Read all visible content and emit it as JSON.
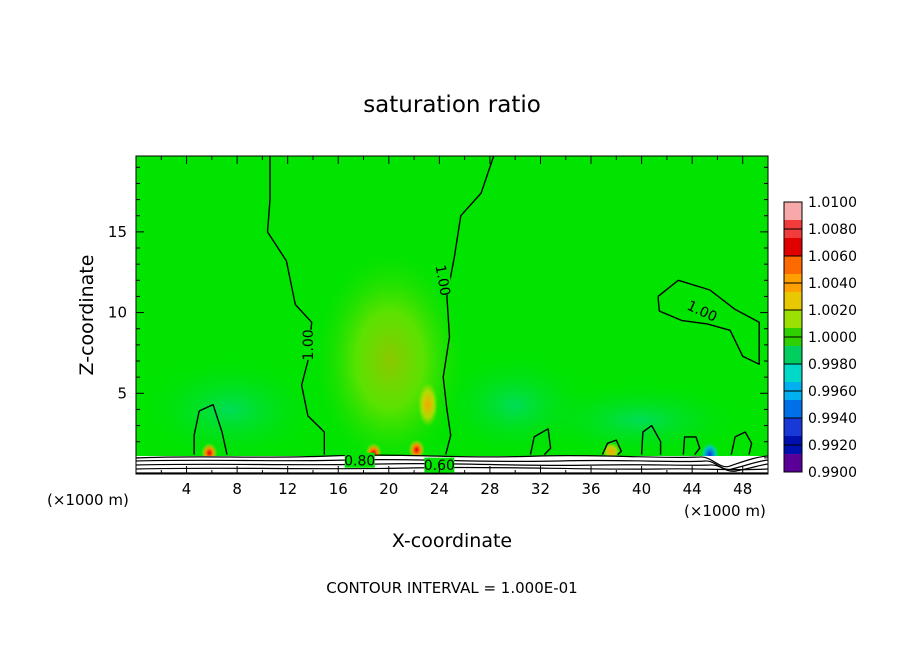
{
  "chart_data": {
    "type": "heatmap",
    "title": "saturation ratio",
    "xlabel": "X-coordinate",
    "ylabel": "Z-coordinate",
    "x_unit_label": "(×1000 m)",
    "x_ticks": [
      4,
      8,
      12,
      16,
      20,
      24,
      28,
      32,
      36,
      40,
      44,
      48
    ],
    "y_ticks": [
      5,
      10,
      15
    ],
    "xlim": [
      0,
      50
    ],
    "ylim": [
      0,
      19.7
    ],
    "footer": "CONTOUR INTERVAL = 1.000E-01",
    "colorbar": {
      "labels": [
        "1.0100",
        "1.0080",
        "1.0060",
        "1.0040",
        "1.0020",
        "1.0000",
        "0.9980",
        "0.9960",
        "0.9940",
        "0.9920",
        "0.9900"
      ],
      "colors": [
        "#f7a8a8",
        "#f03c3c",
        "#e00000",
        "#ff6a00",
        "#ffa000",
        "#e8c800",
        "#9be000",
        "#2fd000",
        "#00cf60",
        "#00d8c8",
        "#00b0f0",
        "#0070e8",
        "#1838d8",
        "#0010b0",
        "#5a0098"
      ]
    },
    "contour_labels": [
      {
        "text": "1.00",
        "x": 13.6,
        "z": 8.0
      },
      {
        "text": "1.00",
        "x": 24.3,
        "z": 12.0
      },
      {
        "text": "1.00",
        "x": 44.8,
        "z": 10.1
      },
      {
        "text": "0.80",
        "x": 17.7,
        "z": 0.85
      },
      {
        "text": "0.60",
        "x": 24.0,
        "z": 0.55
      }
    ],
    "contours_1_00": [
      {
        "name": "left",
        "points": [
          [
            10.6,
            19.7
          ],
          [
            10.6,
            17.0
          ],
          [
            10.4,
            15.0
          ],
          [
            11.9,
            13.2
          ],
          [
            12.6,
            10.5
          ],
          [
            13.9,
            9.4
          ],
          [
            13.6,
            7.0
          ],
          [
            13.1,
            5.5
          ],
          [
            13.6,
            3.6
          ],
          [
            14.9,
            2.6
          ],
          [
            14.9,
            1.2
          ]
        ]
      },
      {
        "name": "right",
        "points": [
          [
            28.3,
            19.7
          ],
          [
            27.3,
            17.4
          ],
          [
            25.7,
            16.0
          ],
          [
            25.2,
            13.5
          ],
          [
            24.6,
            11.0
          ],
          [
            24.8,
            8.5
          ],
          [
            24.3,
            6.0
          ],
          [
            24.6,
            4.0
          ],
          [
            24.9,
            2.4
          ],
          [
            24.5,
            1.2
          ]
        ]
      },
      {
        "name": "closed-upper-right",
        "points": [
          [
            41.3,
            11.0
          ],
          [
            42.9,
            12.0
          ],
          [
            45.4,
            11.4
          ],
          [
            47.4,
            10.2
          ],
          [
            49.3,
            9.4
          ],
          [
            49.3,
            6.8
          ],
          [
            48.0,
            7.3
          ],
          [
            47.0,
            8.9
          ],
          [
            45.2,
            9.3
          ],
          [
            43.2,
            9.5
          ],
          [
            41.4,
            10.1
          ],
          [
            41.3,
            11.0
          ]
        ]
      },
      {
        "name": "bump-6",
        "points": [
          [
            4.6,
            1.2
          ],
          [
            4.6,
            2.4
          ],
          [
            5.0,
            3.9
          ],
          [
            6.1,
            4.3
          ],
          [
            6.8,
            2.6
          ],
          [
            7.2,
            1.2
          ]
        ]
      },
      {
        "name": "bump-32",
        "points": [
          [
            31.2,
            1.2
          ],
          [
            31.5,
            2.3
          ],
          [
            32.6,
            2.8
          ],
          [
            32.8,
            1.6
          ],
          [
            32.3,
            1.2
          ]
        ]
      },
      {
        "name": "bump-37",
        "points": [
          [
            36.9,
            1.2
          ],
          [
            37.3,
            1.9
          ],
          [
            38.0,
            2.1
          ],
          [
            38.4,
            1.4
          ],
          [
            38.1,
            1.2
          ]
        ]
      },
      {
        "name": "bump-40",
        "points": [
          [
            40.0,
            1.2
          ],
          [
            40.1,
            2.6
          ],
          [
            40.8,
            3.0
          ],
          [
            41.5,
            2.0
          ],
          [
            41.5,
            1.2
          ]
        ]
      },
      {
        "name": "bump-43",
        "points": [
          [
            43.3,
            1.2
          ],
          [
            43.4,
            2.3
          ],
          [
            44.3,
            2.3
          ],
          [
            44.6,
            1.6
          ],
          [
            44.2,
            1.2
          ]
        ]
      },
      {
        "name": "bump-47",
        "points": [
          [
            47.1,
            1.2
          ],
          [
            47.4,
            2.3
          ],
          [
            48.2,
            2.6
          ],
          [
            48.7,
            1.9
          ],
          [
            48.5,
            1.2
          ]
        ]
      }
    ],
    "hotspots": [
      {
        "x": 5.8,
        "z": 1.3,
        "value": 1.006
      },
      {
        "x": 18.8,
        "z": 1.3,
        "value": 1.006
      },
      {
        "x": 22.2,
        "z": 1.5,
        "value": 1.008
      },
      {
        "x": 23.1,
        "z": 4.3,
        "value": 1.004
      },
      {
        "x": 37.6,
        "z": 1.4,
        "value": 1.003
      },
      {
        "x": 45.4,
        "z": 1.2,
        "value": 0.993
      }
    ]
  }
}
